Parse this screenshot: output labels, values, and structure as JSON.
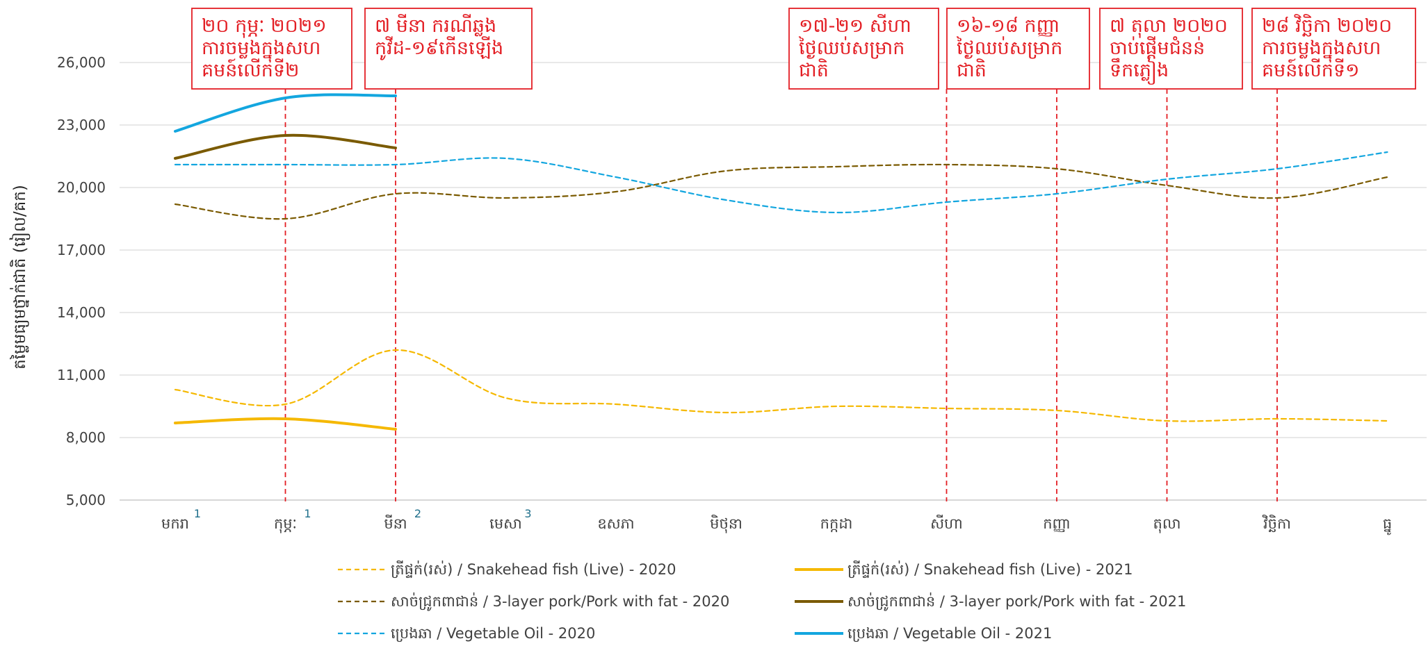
{
  "chart_data": {
    "type": "line",
    "title": "",
    "xlabel": "",
    "ylabel": "តម្លៃមធ្យមថ្នាក់ជាតិ (រៀល/គក)",
    "ylim": [
      5000,
      27000
    ],
    "yticks": [
      5000,
      8000,
      11000,
      14000,
      17000,
      20000,
      23000,
      26000
    ],
    "ytick_labels": [
      "5,000",
      "8,000",
      "11,000",
      "14,000",
      "17,000",
      "20,000",
      "23,000",
      "26,000"
    ],
    "grid": true,
    "legend_position": "bottom",
    "categories": [
      {
        "label": "មករា",
        "note": "1"
      },
      {
        "label": "កុម្ភៈ",
        "note": "1"
      },
      {
        "label": "មីនា",
        "note": "2"
      },
      {
        "label": "មេសា",
        "note": "3"
      },
      {
        "label": "ឧសភា",
        "note": ""
      },
      {
        "label": "មិថុនា",
        "note": ""
      },
      {
        "label": "កក្កដា",
        "note": ""
      },
      {
        "label": "សីហា",
        "note": ""
      },
      {
        "label": "កញ្ញា",
        "note": ""
      },
      {
        "label": "តុលា",
        "note": ""
      },
      {
        "label": "វិច្ឆិកា",
        "note": ""
      },
      {
        "label": "ធ្នូ",
        "note": ""
      }
    ],
    "series": [
      {
        "name": "ត្រីផ្ទក់(រស់) / Snakehead fish (Live) - 2020",
        "color": "#f5b800",
        "dashed": true,
        "values": [
          10300,
          9600,
          12200,
          9900,
          9600,
          9200,
          9500,
          9400,
          9300,
          8800,
          8900,
          8800
        ]
      },
      {
        "name": "ត្រីផ្ទក់(រស់) / Snakehead fish (Live) - 2021",
        "color": "#f5b800",
        "dashed": false,
        "values": [
          8700,
          8900,
          8400,
          null,
          null,
          null,
          null,
          null,
          null,
          null,
          null,
          null
        ]
      },
      {
        "name": "សាច់ជ្រូកពាជាន់ /  3-layer pork/Pork with fat - 2020",
        "color": "#7a5a00",
        "dashed": true,
        "values": [
          19200,
          18500,
          19700,
          19500,
          19800,
          20800,
          21000,
          21100,
          20900,
          20100,
          19500,
          20500
        ]
      },
      {
        "name": "សាច់ជ្រូកពាជាន់ /  3-layer pork/Pork with fat - 2021",
        "color": "#7a5a00",
        "dashed": false,
        "values": [
          21400,
          22500,
          21900,
          null,
          null,
          null,
          null,
          null,
          null,
          null,
          null,
          null
        ]
      },
      {
        "name": "ប្រេងឆា / Vegetable Oil - 2020",
        "color": "#13a6df",
        "dashed": true,
        "values": [
          21100,
          21100,
          21100,
          21400,
          20500,
          19400,
          18800,
          19300,
          19700,
          20400,
          20900,
          21700
        ]
      },
      {
        "name": "ប្រេងឆា / Vegetable Oil - 2021",
        "color": "#13a6df",
        "dashed": false,
        "values": [
          22700,
          24300,
          24400,
          null,
          null,
          null,
          null,
          null,
          null,
          null,
          null,
          null
        ]
      }
    ],
    "annotations": [
      {
        "x_month": "កុម្ភៈ",
        "lines": [
          "២០ កុម្ភៈ ២០២១",
          "ការចម្លងក្នុងសហ",
          "គមន៍លើកទី២"
        ]
      },
      {
        "x_month": "មីនា",
        "lines": [
          "៧ មីនា ករណីឆ្លង",
          "កូវីដ-១៩កើនឡើង"
        ]
      },
      {
        "x_month": "សីហា",
        "lines": [
          "១៧-២១ សីហា",
          "ថ្ងៃឈប់សម្រាក",
          "ជាតិ"
        ]
      },
      {
        "x_month": "កញ្ញា",
        "lines": [
          "១៦-១៨ កញ្ញា",
          "ថ្ងៃឈប់សម្រាក",
          "ជាតិ"
        ]
      },
      {
        "x_month": "តុលា",
        "lines": [
          "៧ តុលា ២០២០",
          "ចាប់ផ្តើមជំនន់",
          "ទឹកភ្លៀង"
        ]
      },
      {
        "x_month": "វិច្ឆិកា",
        "lines": [
          "២៨ វិច្ឆិកា ២០២០",
          "ការចម្លងក្នុងសហ",
          "គមន៍លើកទី១"
        ]
      }
    ]
  }
}
